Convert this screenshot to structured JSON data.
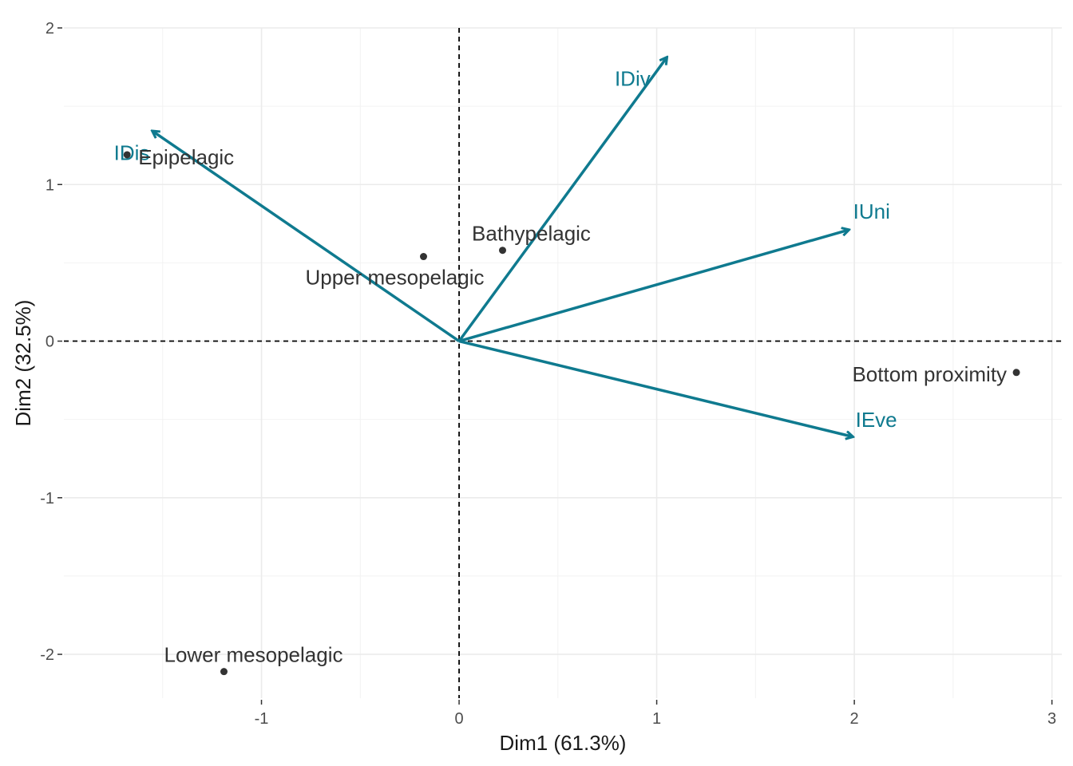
{
  "chart_data": {
    "type": "scatter",
    "subtype": "pca-biplot",
    "title": "",
    "xlabel": "Dim1 (61.3%)",
    "ylabel": "Dim2 (32.5%)",
    "xlim": [
      -2.0,
      3.05
    ],
    "ylim": [
      -2.28,
      2.0
    ],
    "x_ticks": [
      -1,
      0,
      1,
      2,
      3
    ],
    "x_tick_labels": [
      "-1",
      "0",
      "1",
      "2",
      "3"
    ],
    "y_ticks": [
      -2,
      -1,
      0,
      1,
      2
    ],
    "y_tick_labels": [
      "-2",
      "-1",
      "0",
      "1",
      "2"
    ],
    "grid": true,
    "reference_lines": {
      "x": 0,
      "y": 0,
      "style": "dashed"
    },
    "point_color": "#333333",
    "vector_color": "#0f7a8f",
    "points": [
      {
        "label": "Epipelagic",
        "x": -1.68,
        "y": 1.19
      },
      {
        "label": "Upper mesopelagic",
        "x": -0.18,
        "y": 0.54
      },
      {
        "label": "Bathypelagic",
        "x": 0.22,
        "y": 0.58
      },
      {
        "label": "Bottom proximity",
        "x": 2.82,
        "y": -0.2
      },
      {
        "label": "Lower mesopelagic",
        "x": -1.19,
        "y": -2.11
      }
    ],
    "vectors": [
      {
        "label": "IDis",
        "x": -1.55,
        "y": 1.34
      },
      {
        "label": "IDiv",
        "x": 1.05,
        "y": 1.81
      },
      {
        "label": "IUni",
        "x": 1.97,
        "y": 0.71
      },
      {
        "label": "IEve",
        "x": 1.99,
        "y": -0.61
      }
    ]
  }
}
